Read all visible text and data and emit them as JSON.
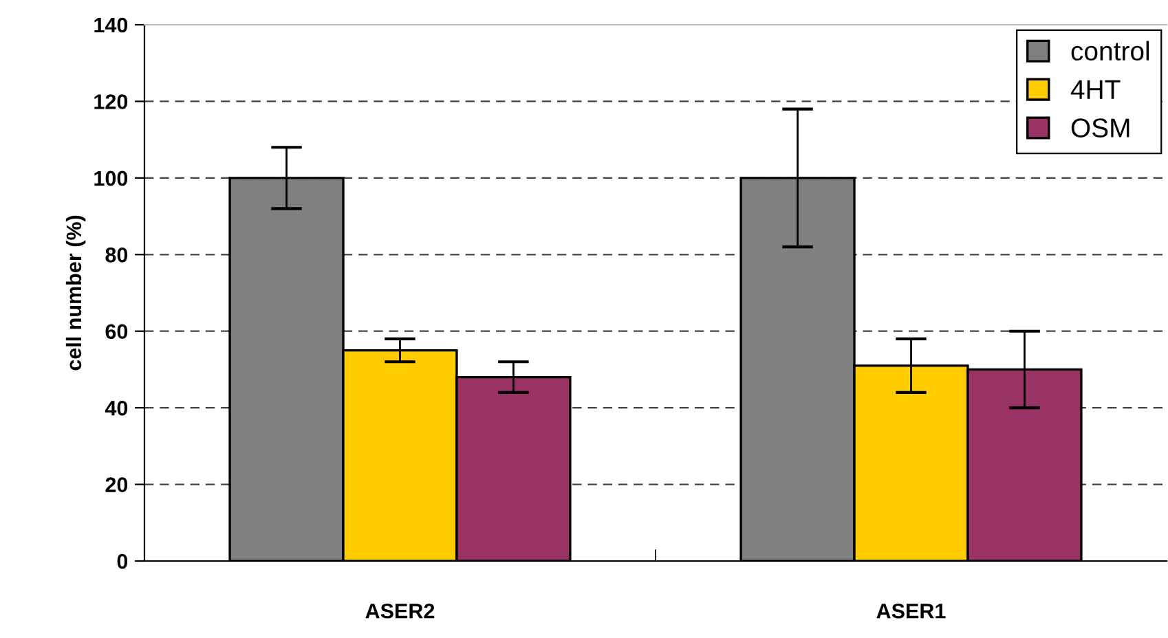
{
  "chart_data": {
    "type": "bar",
    "ylabel": "cell number (%)",
    "categories": [
      "ASER2",
      "ASER1"
    ],
    "series": [
      {
        "name": "control",
        "color": "#808080",
        "values": [
          100,
          100
        ],
        "errors": [
          8,
          18
        ]
      },
      {
        "name": "4HT",
        "color": "#ffcc00",
        "values": [
          55,
          51
        ],
        "errors": [
          3,
          7
        ]
      },
      {
        "name": "OSM",
        "color": "#993366",
        "values": [
          48,
          50
        ],
        "errors": [
          4,
          10
        ]
      }
    ],
    "ylim": [
      0,
      140
    ],
    "yticks": [
      0,
      20,
      40,
      60,
      80,
      100,
      120,
      140
    ],
    "grid": "y",
    "legend": "top right"
  }
}
